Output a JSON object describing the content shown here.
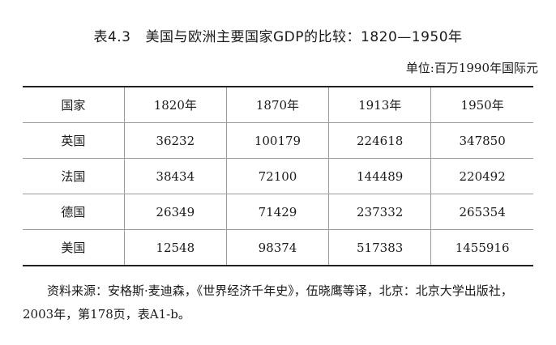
{
  "title": {
    "number": "表4.3",
    "text": "美国与欧洲主要国家GDP的比较：1820—1950年"
  },
  "unit": "单位:百万1990年国际元",
  "table": {
    "headers": [
      "国家",
      "1820年",
      "1870年",
      "1913年",
      "1950年"
    ],
    "rows": [
      [
        "英国",
        "36232",
        "100179",
        "224618",
        "347850"
      ],
      [
        "法国",
        "38434",
        "72100",
        "144489",
        "220492"
      ],
      [
        "德国",
        "26349",
        "71429",
        "237332",
        "265354"
      ],
      [
        "美国",
        "12548",
        "98374",
        "517383",
        "1455916"
      ]
    ]
  },
  "source": "资料来源：安格斯·麦迪森，《世界经济千年史》，伍晓鹰等译，北京：北京大学出版社，2003年，第178页，表A1-b。"
}
